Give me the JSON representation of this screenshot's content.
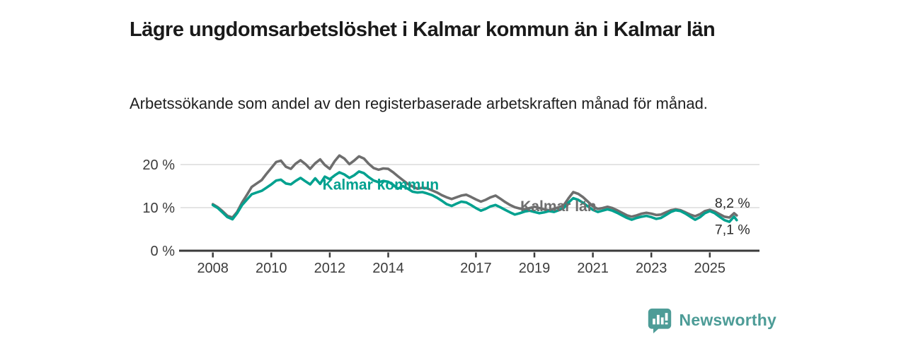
{
  "header": {
    "title": "Lägre ungdomsarbetslöshet i Kalmar kommun än i Kalmar län",
    "subtitle": "Arbetssökande som andel av den registerbaserade arbetskraften månad för månad."
  },
  "branding": {
    "logo_text": "Newsworthy",
    "logo_color": "#4d9c97",
    "logo_icon": "bar-chart-speech-bubble"
  },
  "colors": {
    "kommun_line": "#00a18f",
    "lan_line": "#6e6e6e",
    "axis": "#3a3a3a",
    "gridline": "#dcdcdc",
    "tick_label": "#3c3c3c",
    "end_label": "#2b2b2b"
  },
  "chart_data": {
    "type": "line",
    "title": "Lägre ungdomsarbetslöshet i Kalmar kommun än i Kalmar län",
    "subtitle": "Arbetssökande som andel av den registerbaserade arbetskraften månad för månad.",
    "x_axis": {
      "range": [
        2006.9,
        2026.7
      ],
      "ticks": [
        2008,
        2010,
        2012,
        2014,
        2017,
        2019,
        2021,
        2023,
        2025
      ]
    },
    "y_axis": {
      "range": [
        0,
        24.5
      ],
      "ticks": [
        0,
        10,
        20
      ],
      "tick_labels": [
        "0 %",
        "10 %",
        "20 %"
      ],
      "gridlines": [
        10,
        20
      ],
      "unit": "%"
    },
    "legend_position": "inline-labels",
    "grid": "horizontal-only",
    "series": [
      {
        "name": "Kalmar län",
        "color": "#6e6e6e",
        "end_label": "8,2 %",
        "end_value": 8.2,
        "end_label_side": "above",
        "inline_label": {
          "text": "Kalmar län",
          "x": 2018.52,
          "y": 10.3
        },
        "points": [
          [
            2008.0,
            10.8
          ],
          [
            2008.17,
            10.1
          ],
          [
            2008.33,
            9.2
          ],
          [
            2008.5,
            8.1
          ],
          [
            2008.67,
            7.7
          ],
          [
            2008.83,
            9.0
          ],
          [
            2009.0,
            11.2
          ],
          [
            2009.17,
            13.0
          ],
          [
            2009.33,
            14.8
          ],
          [
            2009.5,
            15.6
          ],
          [
            2009.67,
            16.4
          ],
          [
            2009.83,
            17.8
          ],
          [
            2010.0,
            19.2
          ],
          [
            2010.17,
            20.6
          ],
          [
            2010.33,
            20.9
          ],
          [
            2010.5,
            19.5
          ],
          [
            2010.67,
            19.0
          ],
          [
            2010.83,
            20.2
          ],
          [
            2011.0,
            21.0
          ],
          [
            2011.17,
            20.1
          ],
          [
            2011.33,
            19.0
          ],
          [
            2011.5,
            20.3
          ],
          [
            2011.67,
            21.2
          ],
          [
            2011.83,
            19.9
          ],
          [
            2012.0,
            19.0
          ],
          [
            2012.17,
            20.8
          ],
          [
            2012.33,
            22.1
          ],
          [
            2012.5,
            21.4
          ],
          [
            2012.67,
            20.1
          ],
          [
            2012.83,
            20.9
          ],
          [
            2013.0,
            21.9
          ],
          [
            2013.17,
            21.4
          ],
          [
            2013.33,
            20.2
          ],
          [
            2013.5,
            19.2
          ],
          [
            2013.67,
            18.8
          ],
          [
            2013.83,
            19.1
          ],
          [
            2014.0,
            19.0
          ],
          [
            2014.17,
            18.2
          ],
          [
            2014.33,
            17.3
          ],
          [
            2014.5,
            16.4
          ],
          [
            2014.67,
            15.5
          ],
          [
            2014.83,
            14.9
          ],
          [
            2015.0,
            14.4
          ],
          [
            2015.17,
            14.6
          ],
          [
            2015.33,
            14.5
          ],
          [
            2015.5,
            14.0
          ],
          [
            2015.67,
            13.5
          ],
          [
            2015.83,
            12.9
          ],
          [
            2016.0,
            12.4
          ],
          [
            2016.17,
            12.0
          ],
          [
            2016.33,
            12.4
          ],
          [
            2016.5,
            12.8
          ],
          [
            2016.67,
            13.0
          ],
          [
            2016.83,
            12.5
          ],
          [
            2017.0,
            11.9
          ],
          [
            2017.17,
            11.4
          ],
          [
            2017.33,
            11.8
          ],
          [
            2017.5,
            12.4
          ],
          [
            2017.67,
            12.8
          ],
          [
            2017.83,
            12.1
          ],
          [
            2018.0,
            11.3
          ],
          [
            2018.17,
            10.6
          ],
          [
            2018.33,
            10.1
          ],
          [
            2018.5,
            9.8
          ],
          [
            2018.67,
            9.6
          ],
          [
            2018.83,
            9.9
          ],
          [
            2019.0,
            10.2
          ],
          [
            2019.17,
            9.9
          ],
          [
            2019.33,
            9.6
          ],
          [
            2019.5,
            9.4
          ],
          [
            2019.67,
            9.7
          ],
          [
            2019.83,
            10.1
          ],
          [
            2020.0,
            10.5
          ],
          [
            2020.17,
            12.2
          ],
          [
            2020.33,
            13.6
          ],
          [
            2020.5,
            13.2
          ],
          [
            2020.67,
            12.4
          ],
          [
            2020.83,
            11.4
          ],
          [
            2021.0,
            10.3
          ],
          [
            2021.17,
            9.7
          ],
          [
            2021.33,
            9.9
          ],
          [
            2021.5,
            10.2
          ],
          [
            2021.67,
            9.9
          ],
          [
            2021.83,
            9.4
          ],
          [
            2022.0,
            8.8
          ],
          [
            2022.17,
            8.2
          ],
          [
            2022.33,
            7.9
          ],
          [
            2022.5,
            8.2
          ],
          [
            2022.67,
            8.6
          ],
          [
            2022.83,
            8.8
          ],
          [
            2023.0,
            8.6
          ],
          [
            2023.17,
            8.3
          ],
          [
            2023.33,
            8.4
          ],
          [
            2023.5,
            8.9
          ],
          [
            2023.67,
            9.4
          ],
          [
            2023.83,
            9.6
          ],
          [
            2024.0,
            9.4
          ],
          [
            2024.17,
            8.9
          ],
          [
            2024.33,
            8.4
          ],
          [
            2024.5,
            8.0
          ],
          [
            2024.67,
            8.5
          ],
          [
            2024.83,
            9.2
          ],
          [
            2025.0,
            9.5
          ],
          [
            2025.17,
            9.1
          ],
          [
            2025.33,
            8.5
          ],
          [
            2025.5,
            7.9
          ],
          [
            2025.67,
            7.7
          ],
          [
            2025.83,
            8.7
          ],
          [
            2025.92,
            8.2
          ]
        ]
      },
      {
        "name": "Kalmar kommun",
        "color": "#00a18f",
        "end_label": "7,1 %",
        "end_value": 7.1,
        "end_label_side": "below",
        "inline_label": {
          "text": "Kalmar kommun",
          "x": 2011.75,
          "y": 15.3
        },
        "points": [
          [
            2008.0,
            10.6
          ],
          [
            2008.17,
            9.9
          ],
          [
            2008.33,
            8.9
          ],
          [
            2008.5,
            7.8
          ],
          [
            2008.67,
            7.3
          ],
          [
            2008.83,
            8.7
          ],
          [
            2009.0,
            10.6
          ],
          [
            2009.17,
            11.9
          ],
          [
            2009.33,
            13.1
          ],
          [
            2009.5,
            13.5
          ],
          [
            2009.67,
            13.9
          ],
          [
            2009.83,
            14.6
          ],
          [
            2010.0,
            15.4
          ],
          [
            2010.17,
            16.3
          ],
          [
            2010.33,
            16.5
          ],
          [
            2010.5,
            15.6
          ],
          [
            2010.67,
            15.4
          ],
          [
            2010.83,
            16.2
          ],
          [
            2011.0,
            16.9
          ],
          [
            2011.17,
            16.1
          ],
          [
            2011.33,
            15.4
          ],
          [
            2011.5,
            16.8
          ],
          [
            2011.67,
            15.5
          ],
          [
            2011.83,
            17.2
          ],
          [
            2012.0,
            16.6
          ],
          [
            2012.17,
            17.5
          ],
          [
            2012.33,
            18.2
          ],
          [
            2012.5,
            17.7
          ],
          [
            2012.67,
            16.9
          ],
          [
            2012.83,
            17.5
          ],
          [
            2013.0,
            18.4
          ],
          [
            2013.17,
            18.0
          ],
          [
            2013.33,
            17.1
          ],
          [
            2013.5,
            16.3
          ],
          [
            2013.67,
            15.9
          ],
          [
            2013.83,
            16.2
          ],
          [
            2014.0,
            16.0
          ],
          [
            2014.17,
            15.3
          ],
          [
            2014.33,
            14.4
          ],
          [
            2014.5,
            15.0
          ],
          [
            2014.67,
            14.4
          ],
          [
            2014.83,
            13.7
          ],
          [
            2015.0,
            13.5
          ],
          [
            2015.17,
            13.6
          ],
          [
            2015.33,
            13.3
          ],
          [
            2015.5,
            12.9
          ],
          [
            2015.67,
            12.3
          ],
          [
            2015.83,
            11.6
          ],
          [
            2016.0,
            10.8
          ],
          [
            2016.17,
            10.4
          ],
          [
            2016.33,
            10.9
          ],
          [
            2016.5,
            11.4
          ],
          [
            2016.67,
            11.2
          ],
          [
            2016.83,
            10.6
          ],
          [
            2017.0,
            9.9
          ],
          [
            2017.17,
            9.3
          ],
          [
            2017.33,
            9.7
          ],
          [
            2017.5,
            10.3
          ],
          [
            2017.67,
            10.6
          ],
          [
            2017.83,
            10.1
          ],
          [
            2018.0,
            9.5
          ],
          [
            2018.17,
            8.9
          ],
          [
            2018.33,
            8.4
          ],
          [
            2018.5,
            8.7
          ],
          [
            2018.67,
            9.1
          ],
          [
            2018.83,
            9.3
          ],
          [
            2019.0,
            9.0
          ],
          [
            2019.17,
            8.7
          ],
          [
            2019.33,
            8.9
          ],
          [
            2019.5,
            9.2
          ],
          [
            2019.67,
            9.0
          ],
          [
            2019.83,
            9.4
          ],
          [
            2020.0,
            9.9
          ],
          [
            2020.17,
            11.2
          ],
          [
            2020.33,
            12.2
          ],
          [
            2020.5,
            11.8
          ],
          [
            2020.67,
            11.1
          ],
          [
            2020.83,
            10.3
          ],
          [
            2021.0,
            9.5
          ],
          [
            2021.17,
            9.0
          ],
          [
            2021.33,
            9.3
          ],
          [
            2021.5,
            9.6
          ],
          [
            2021.67,
            9.3
          ],
          [
            2021.83,
            8.8
          ],
          [
            2022.0,
            8.2
          ],
          [
            2022.17,
            7.6
          ],
          [
            2022.33,
            7.2
          ],
          [
            2022.5,
            7.6
          ],
          [
            2022.67,
            7.9
          ],
          [
            2022.83,
            8.1
          ],
          [
            2023.0,
            7.8
          ],
          [
            2023.17,
            7.4
          ],
          [
            2023.33,
            7.6
          ],
          [
            2023.5,
            8.3
          ],
          [
            2023.67,
            9.0
          ],
          [
            2023.83,
            9.4
          ],
          [
            2024.0,
            9.2
          ],
          [
            2024.17,
            8.6
          ],
          [
            2024.33,
            7.9
          ],
          [
            2024.5,
            7.2
          ],
          [
            2024.67,
            7.8
          ],
          [
            2024.83,
            8.7
          ],
          [
            2025.0,
            9.2
          ],
          [
            2025.17,
            8.7
          ],
          [
            2025.33,
            7.9
          ],
          [
            2025.5,
            7.1
          ],
          [
            2025.67,
            6.7
          ],
          [
            2025.83,
            7.9
          ],
          [
            2025.92,
            7.1
          ]
        ]
      }
    ]
  }
}
